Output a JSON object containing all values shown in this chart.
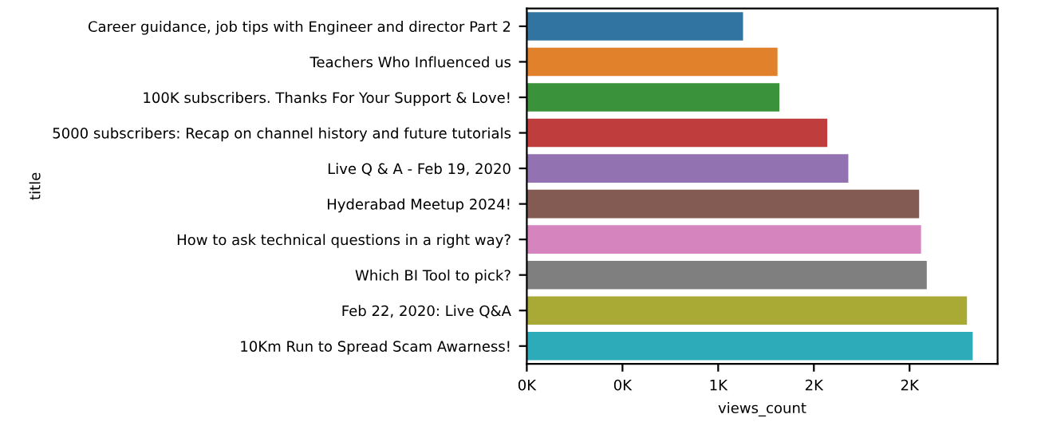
{
  "chart_data": {
    "type": "bar",
    "orientation": "horizontal",
    "xlabel": "views_count",
    "ylabel": "title",
    "categories": [
      "Career guidance, job tips with Engineer and director Part 2",
      "Teachers Who Influenced us",
      "100K subscribers. Thanks For Your Support & Love!",
      "5000 subscribers: Recap on channel history and future tutorials",
      "Live Q & A - Feb 19, 2020",
      "Hyderabad Meetup 2024!",
      "How to ask technical questions in a right way?",
      "Which BI Tool to pick?",
      "Feb 22, 2020: Live Q&A",
      "10Km Run to Spread Scam Awarness!"
    ],
    "values": [
      1130,
      1310,
      1320,
      1570,
      1680,
      2050,
      2060,
      2090,
      2300,
      2330
    ],
    "colors": [
      "#3274a1",
      "#e1812c",
      "#3a923a",
      "#c03d3e",
      "#9372b2",
      "#845b53",
      "#d684bd",
      "#7f7f7f",
      "#a9aa35",
      "#2eabb8"
    ],
    "xlim": [
      0,
      2460
    ],
    "xticks": [
      {
        "value": 0,
        "label": "0K"
      },
      {
        "value": 500,
        "label": "0K"
      },
      {
        "value": 1000,
        "label": "1K"
      },
      {
        "value": 1500,
        "label": "2K"
      },
      {
        "value": 2000,
        "label": "2K"
      }
    ],
    "grid": false,
    "legend": false
  }
}
